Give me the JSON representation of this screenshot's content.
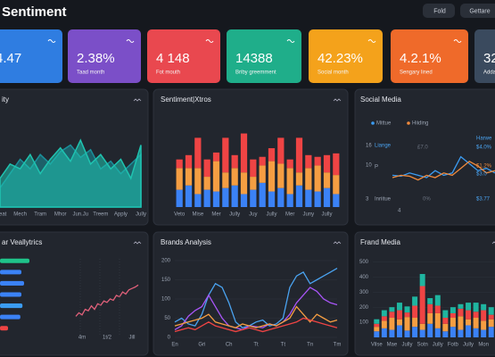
{
  "header": {
    "title": "Sentiment",
    "buttons": [
      "Fold",
      "Gettare"
    ]
  },
  "kpis": [
    {
      "value": "4.47",
      "color": "#2f7de1"
    },
    {
      "value": "2.38%",
      "label": "Taad month",
      "color": "#7b4fc8"
    },
    {
      "value": "4 148",
      "label": "Fot mouth",
      "color": "#e9484f"
    },
    {
      "value": "14388",
      "label": "Briby greemment",
      "color": "#1fae8a"
    },
    {
      "value": "42.23%",
      "label": "Social month",
      "color": "#f4a21b"
    },
    {
      "value": "4.2.1%",
      "label": "Sengary lined",
      "color": "#ef6a2a"
    },
    {
      "value": "32",
      "label": "Adda",
      "color": "#3a4a5e"
    }
  ],
  "chart_data": [
    {
      "type": "area",
      "title": "ity",
      "categories": [
        "Teeat",
        null,
        "Mech",
        null,
        "Tram",
        null,
        "Mhor",
        null,
        "Jun.Ju",
        null,
        "Treem",
        null,
        "Apply",
        null,
        "Jully"
      ],
      "ylim": [
        0,
        100
      ],
      "series": [
        {
          "color": "#1a8f9a",
          "values": [
            20,
            35,
            50,
            40,
            55,
            45,
            58,
            65,
            52,
            60,
            40,
            48,
            35,
            45,
            55
          ]
        },
        {
          "color": "#1fc3b0",
          "values": [
            30,
            45,
            40,
            55,
            35,
            50,
            62,
            48,
            70,
            45,
            55,
            40,
            50,
            30,
            65
          ]
        }
      ]
    },
    {
      "type": "bar",
      "stacked": true,
      "title": "Sentiment|Xtros",
      "categories": [
        "Veto",
        null,
        "Mise",
        null,
        "Mer",
        null,
        "Jully",
        null,
        "Juy",
        null,
        "Jully",
        null,
        "Mer",
        null,
        "Juny",
        null,
        "Jully",
        null
      ],
      "ylim": [
        0,
        100
      ],
      "series": [
        {
          "color": "#3b82f6",
          "values": [
            20,
            25,
            15,
            20,
            18,
            22,
            25,
            15,
            20,
            28,
            18,
            22,
            15,
            25,
            20,
            18,
            22,
            15
          ]
        },
        {
          "color": "#f59e42",
          "values": [
            25,
            20,
            30,
            15,
            35,
            18,
            20,
            25,
            15,
            20,
            35,
            28,
            30,
            15,
            25,
            30,
            18,
            22
          ]
        },
        {
          "color": "#ef4444",
          "values": [
            10,
            15,
            35,
            20,
            10,
            40,
            15,
            45,
            20,
            10,
            15,
            30,
            10,
            40,
            15,
            10,
            20,
            25
          ]
        }
      ]
    },
    {
      "type": "line",
      "title": "Social Media",
      "x": [
        0,
        1,
        2,
        3,
        4,
        5,
        6,
        7,
        8,
        9,
        10,
        11,
        12
      ],
      "xlim": [
        0,
        12
      ],
      "ylim": [
        0,
        100
      ],
      "series": [
        {
          "name": "Mittue",
          "color": "#3b9cf2",
          "values": [
            30,
            28,
            35,
            30,
            25,
            40,
            30,
            35,
            70,
            55,
            40,
            45,
            35
          ]
        },
        {
          "name": "Hiiding",
          "color": "#f08a3c",
          "values": [
            25,
            30,
            28,
            20,
            30,
            25,
            35,
            30,
            45,
            60,
            50,
            35,
            40
          ]
        }
      ],
      "annotations": [
        "16",
        "10",
        "P",
        "3",
        "Liange",
        "£7.0",
        "Inriitue",
        "0%",
        "Harwe",
        "$4.0%",
        "$1.2%",
        "$3.0",
        "$3.77",
        "4"
      ]
    },
    {
      "type": "bar",
      "orientation": "horizontal",
      "title": "ar Veallytrics",
      "xlim": [
        0,
        100
      ],
      "values": [
        55,
        40,
        45,
        40,
        42,
        38,
        15
      ],
      "colors": [
        "#1fc38a",
        "#3b82f6",
        "#3b82f6",
        "#3b82f6",
        "#3b9cf2",
        "#3b82f6",
        "#ef4444"
      ]
    },
    {
      "type": "line",
      "title": "Brands Analysis",
      "x": [
        0,
        1,
        2,
        3,
        4,
        5,
        6,
        7,
        8,
        9,
        10,
        11,
        12,
        13,
        14,
        15,
        16,
        17,
        18,
        19,
        20,
        21,
        22,
        23,
        24
      ],
      "xlim": [
        0,
        24
      ],
      "ylim": [
        0,
        200
      ],
      "yticks": [
        0,
        50,
        100,
        150,
        200
      ],
      "xticks": [
        {
          "value": 0,
          "label": "En"
        },
        {
          "value": 4,
          "label": "Gri"
        },
        {
          "value": 8,
          "label": "Ch"
        },
        {
          "value": 12,
          "label": "Tt"
        },
        {
          "value": 16,
          "label": "Tt"
        },
        {
          "value": 20,
          "label": "Tn"
        },
        {
          "value": 24,
          "label": "Tm"
        }
      ],
      "series": [
        {
          "color": "#4aa3f0",
          "values": [
            40,
            50,
            35,
            30,
            60,
            110,
            140,
            130,
            90,
            40,
            25,
            30,
            40,
            45,
            30,
            35,
            50,
            130,
            160,
            170,
            140,
            150,
            160,
            170,
            180
          ]
        },
        {
          "color": "#a855f7",
          "values": [
            20,
            30,
            55,
            70,
            80,
            110,
            80,
            50,
            30,
            25,
            20,
            30,
            28,
            25,
            35,
            30,
            40,
            60,
            90,
            110,
            130,
            120,
            100,
            90,
            85
          ]
        },
        {
          "color": "#f59e42",
          "values": [
            30,
            35,
            40,
            45,
            50,
            60,
            40,
            35,
            30,
            25,
            35,
            30,
            25,
            30,
            35,
            30,
            40,
            50,
            80,
            60,
            40,
            60,
            50,
            40,
            45
          ]
        },
        {
          "color": "#ef4444",
          "values": [
            15,
            20,
            25,
            20,
            30,
            40,
            30,
            25,
            20,
            15,
            20,
            25,
            20,
            15,
            20,
            25,
            30,
            35,
            40,
            50,
            45,
            40,
            35,
            30,
            25
          ]
        }
      ]
    },
    {
      "type": "bar",
      "stacked": true,
      "title": "Frand Media",
      "categories": [
        "Vilse",
        null,
        "Mae",
        null,
        "Jully",
        null,
        "Sotn",
        null,
        "Jully",
        null,
        "Fotb",
        null,
        "Jully",
        null,
        "Mon",
        null
      ],
      "ylim": [
        0,
        550
      ],
      "yticks": [
        100,
        200,
        300,
        400,
        500
      ],
      "series": [
        {
          "color": "#3b82f6",
          "values": [
            40,
            60,
            50,
            80,
            45,
            70,
            50,
            90,
            60,
            40,
            70,
            50,
            80,
            60,
            50,
            70
          ]
        },
        {
          "color": "#f59e42",
          "values": [
            30,
            50,
            80,
            40,
            90,
            60,
            40,
            70,
            100,
            50,
            60,
            90,
            40,
            70,
            60,
            50
          ]
        },
        {
          "color": "#ef4444",
          "values": [
            20,
            30,
            40,
            60,
            30,
            80,
            250,
            60,
            50,
            40,
            30,
            50,
            60,
            40,
            70,
            30
          ]
        },
        {
          "color": "#1fb5a0",
          "values": [
            30,
            40,
            30,
            50,
            40,
            60,
            80,
            40,
            70,
            50,
            40,
            30,
            50,
            60,
            40,
            50
          ]
        }
      ]
    },
    {
      "type": "line",
      "x": [
        0,
        1,
        2,
        3,
        4,
        5,
        6,
        7,
        8,
        9,
        10,
        11,
        12,
        13,
        14,
        15,
        16,
        17,
        18,
        19,
        20
      ],
      "xlim": [
        0,
        20
      ],
      "ylim": [
        0,
        100
      ],
      "xticks": [
        {
          "value": 2,
          "label": "4m"
        },
        {
          "value": 10,
          "label": "1t/2"
        },
        {
          "value": 18,
          "label": "Jill"
        }
      ],
      "series": [
        {
          "color": "#e0607a",
          "values": [
            20,
            25,
            22,
            30,
            28,
            35,
            30,
            38,
            36,
            42,
            40,
            45,
            43,
            50,
            48,
            55,
            52,
            58,
            60,
            62,
            65
          ]
        }
      ]
    }
  ]
}
